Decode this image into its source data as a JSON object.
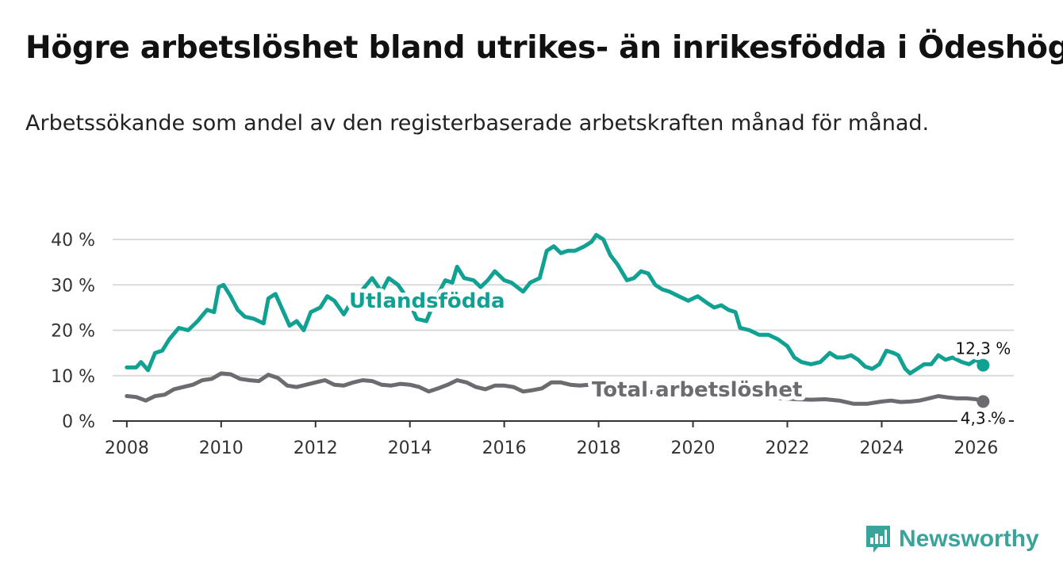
{
  "title": "Högre arbetslöshet bland utrikes- än inrikesfödda i Ödeshög",
  "subtitle": "Arbetssökande som andel av den registerbaserade arbetskraften månad för månad.",
  "logo_text": "Newsworthy",
  "colors": {
    "utlandsfodda": "#11a192",
    "total": "#6b6b70",
    "grid": "#d9d9d9",
    "axis": "#333333"
  },
  "chart_data": {
    "type": "line",
    "title": "Högre arbetslöshet bland utrikes- än inrikesfödda i Ödeshög",
    "xlabel": "",
    "ylabel": "",
    "xlim": [
      2007.7,
      2026.8
    ],
    "ylim": [
      0,
      40
    ],
    "x_ticks": [
      2008,
      2010,
      2012,
      2014,
      2016,
      2018,
      2020,
      2022,
      2024,
      2026
    ],
    "x_tick_labels": [
      "2008",
      "2010",
      "2012",
      "2014",
      "2016",
      "2018",
      "2020",
      "2022",
      "2024",
      "2026"
    ],
    "y_ticks": [
      0,
      10,
      20,
      30,
      40
    ],
    "y_tick_labels": [
      "0 %",
      "10 %",
      "20 %",
      "30 %",
      "40 %"
    ],
    "grid": true,
    "series": [
      {
        "name": "Utlandsfödda",
        "label": "Utlandsfödda",
        "end_label": "12,3 %",
        "points": [
          [
            2008.0,
            11.8
          ],
          [
            2008.2,
            11.8
          ],
          [
            2008.3,
            13.0
          ],
          [
            2008.45,
            11.2
          ],
          [
            2008.6,
            15.0
          ],
          [
            2008.75,
            15.5
          ],
          [
            2008.9,
            18.0
          ],
          [
            2009.1,
            20.5
          ],
          [
            2009.3,
            20.0
          ],
          [
            2009.5,
            22.0
          ],
          [
            2009.7,
            24.5
          ],
          [
            2009.85,
            24.0
          ],
          [
            2009.95,
            29.5
          ],
          [
            2010.05,
            30.0
          ],
          [
            2010.2,
            27.5
          ],
          [
            2010.35,
            24.5
          ],
          [
            2010.5,
            23.0
          ],
          [
            2010.7,
            22.5
          ],
          [
            2010.9,
            21.5
          ],
          [
            2011.0,
            27.0
          ],
          [
            2011.15,
            28.0
          ],
          [
            2011.3,
            24.5
          ],
          [
            2011.45,
            21.0
          ],
          [
            2011.6,
            22.0
          ],
          [
            2011.75,
            20.0
          ],
          [
            2011.9,
            24.0
          ],
          [
            2012.1,
            25.0
          ],
          [
            2012.25,
            27.5
          ],
          [
            2012.4,
            26.5
          ],
          [
            2012.6,
            23.5
          ],
          [
            2012.8,
            27.0
          ],
          [
            2013.0,
            29.0
          ],
          [
            2013.2,
            31.5
          ],
          [
            2013.4,
            28.5
          ],
          [
            2013.55,
            31.5
          ],
          [
            2013.75,
            30.0
          ],
          [
            2013.95,
            27.0
          ],
          [
            2014.15,
            22.5
          ],
          [
            2014.35,
            22.0
          ],
          [
            2014.55,
            27.0
          ],
          [
            2014.75,
            31.0
          ],
          [
            2014.9,
            30.5
          ],
          [
            2015.0,
            34.0
          ],
          [
            2015.15,
            31.5
          ],
          [
            2015.35,
            31.0
          ],
          [
            2015.5,
            29.5
          ],
          [
            2015.65,
            31.0
          ],
          [
            2015.8,
            33.0
          ],
          [
            2016.0,
            31.0
          ],
          [
            2016.15,
            30.5
          ],
          [
            2016.4,
            28.5
          ],
          [
            2016.55,
            30.5
          ],
          [
            2016.75,
            31.5
          ],
          [
            2016.9,
            37.5
          ],
          [
            2017.05,
            38.5
          ],
          [
            2017.2,
            37.0
          ],
          [
            2017.35,
            37.5
          ],
          [
            2017.5,
            37.5
          ],
          [
            2017.7,
            38.5
          ],
          [
            2017.85,
            39.5
          ],
          [
            2017.95,
            41.0
          ],
          [
            2018.1,
            40.0
          ],
          [
            2018.25,
            36.5
          ],
          [
            2018.4,
            34.5
          ],
          [
            2018.6,
            31.0
          ],
          [
            2018.75,
            31.5
          ],
          [
            2018.9,
            33.0
          ],
          [
            2019.05,
            32.5
          ],
          [
            2019.2,
            30.0
          ],
          [
            2019.35,
            29.0
          ],
          [
            2019.5,
            28.5
          ],
          [
            2019.7,
            27.5
          ],
          [
            2019.9,
            26.5
          ],
          [
            2020.1,
            27.5
          ],
          [
            2020.3,
            26.0
          ],
          [
            2020.45,
            25.0
          ],
          [
            2020.6,
            25.5
          ],
          [
            2020.75,
            24.5
          ],
          [
            2020.9,
            24.0
          ],
          [
            2021.0,
            20.5
          ],
          [
            2021.2,
            20.0
          ],
          [
            2021.4,
            19.0
          ],
          [
            2021.6,
            19.0
          ],
          [
            2021.8,
            18.0
          ],
          [
            2022.0,
            16.5
          ],
          [
            2022.15,
            14.0
          ],
          [
            2022.3,
            13.0
          ],
          [
            2022.5,
            12.5
          ],
          [
            2022.7,
            13.0
          ],
          [
            2022.9,
            15.0
          ],
          [
            2023.05,
            14.0
          ],
          [
            2023.2,
            14.0
          ],
          [
            2023.35,
            14.5
          ],
          [
            2023.5,
            13.5
          ],
          [
            2023.65,
            12.0
          ],
          [
            2023.8,
            11.5
          ],
          [
            2023.95,
            12.5
          ],
          [
            2024.1,
            15.5
          ],
          [
            2024.25,
            15.0
          ],
          [
            2024.35,
            14.5
          ],
          [
            2024.5,
            11.5
          ],
          [
            2024.6,
            10.5
          ],
          [
            2024.75,
            11.5
          ],
          [
            2024.9,
            12.5
          ],
          [
            2025.05,
            12.5
          ],
          [
            2025.2,
            14.5
          ],
          [
            2025.35,
            13.5
          ],
          [
            2025.5,
            14.0
          ],
          [
            2025.7,
            13.0
          ],
          [
            2025.85,
            12.5
          ],
          [
            2026.0,
            13.5
          ],
          [
            2026.15,
            12.3
          ]
        ]
      },
      {
        "name": "Total arbetslöshet",
        "label": "Total arbetslöshet",
        "end_label": "4,3 %",
        "points": [
          [
            2008.0,
            5.5
          ],
          [
            2008.2,
            5.3
          ],
          [
            2008.4,
            4.5
          ],
          [
            2008.6,
            5.5
          ],
          [
            2008.8,
            5.8
          ],
          [
            2009.0,
            7.0
          ],
          [
            2009.2,
            7.5
          ],
          [
            2009.4,
            8.0
          ],
          [
            2009.6,
            9.0
          ],
          [
            2009.8,
            9.3
          ],
          [
            2010.0,
            10.5
          ],
          [
            2010.2,
            10.3
          ],
          [
            2010.4,
            9.3
          ],
          [
            2010.6,
            9.0
          ],
          [
            2010.8,
            8.8
          ],
          [
            2011.0,
            10.2
          ],
          [
            2011.2,
            9.5
          ],
          [
            2011.4,
            7.8
          ],
          [
            2011.6,
            7.5
          ],
          [
            2011.8,
            8.0
          ],
          [
            2012.0,
            8.5
          ],
          [
            2012.2,
            9.0
          ],
          [
            2012.4,
            8.0
          ],
          [
            2012.6,
            7.8
          ],
          [
            2012.8,
            8.5
          ],
          [
            2013.0,
            9.0
          ],
          [
            2013.2,
            8.8
          ],
          [
            2013.4,
            8.0
          ],
          [
            2013.6,
            7.8
          ],
          [
            2013.8,
            8.2
          ],
          [
            2014.0,
            8.0
          ],
          [
            2014.2,
            7.5
          ],
          [
            2014.4,
            6.5
          ],
          [
            2014.6,
            7.2
          ],
          [
            2014.8,
            8.0
          ],
          [
            2015.0,
            9.0
          ],
          [
            2015.2,
            8.5
          ],
          [
            2015.4,
            7.5
          ],
          [
            2015.6,
            7.0
          ],
          [
            2015.8,
            7.8
          ],
          [
            2016.0,
            7.8
          ],
          [
            2016.2,
            7.5
          ],
          [
            2016.4,
            6.5
          ],
          [
            2016.6,
            6.8
          ],
          [
            2016.8,
            7.2
          ],
          [
            2017.0,
            8.5
          ],
          [
            2017.2,
            8.5
          ],
          [
            2017.4,
            8.0
          ],
          [
            2017.6,
            7.8
          ],
          [
            2017.8,
            8.0
          ],
          [
            2018.0,
            7.5
          ],
          [
            2018.3,
            7.0
          ],
          [
            2018.6,
            6.8
          ],
          [
            2018.9,
            6.5
          ],
          [
            2019.2,
            6.3
          ],
          [
            2019.5,
            6.0
          ],
          [
            2019.8,
            6.0
          ],
          [
            2020.1,
            6.0
          ],
          [
            2020.4,
            5.8
          ],
          [
            2020.7,
            5.7
          ],
          [
            2021.0,
            5.5
          ],
          [
            2021.3,
            5.3
          ],
          [
            2021.6,
            5.2
          ],
          [
            2021.9,
            5.0
          ],
          [
            2022.2,
            4.8
          ],
          [
            2022.5,
            4.7
          ],
          [
            2022.8,
            4.8
          ],
          [
            2023.1,
            4.5
          ],
          [
            2023.4,
            3.8
          ],
          [
            2023.7,
            3.8
          ],
          [
            2024.0,
            4.3
          ],
          [
            2024.2,
            4.5
          ],
          [
            2024.4,
            4.2
          ],
          [
            2024.6,
            4.3
          ],
          [
            2024.8,
            4.5
          ],
          [
            2025.0,
            5.0
          ],
          [
            2025.2,
            5.5
          ],
          [
            2025.4,
            5.2
          ],
          [
            2025.6,
            5.0
          ],
          [
            2025.8,
            5.0
          ],
          [
            2026.0,
            4.8
          ],
          [
            2026.15,
            4.3
          ]
        ]
      }
    ]
  }
}
